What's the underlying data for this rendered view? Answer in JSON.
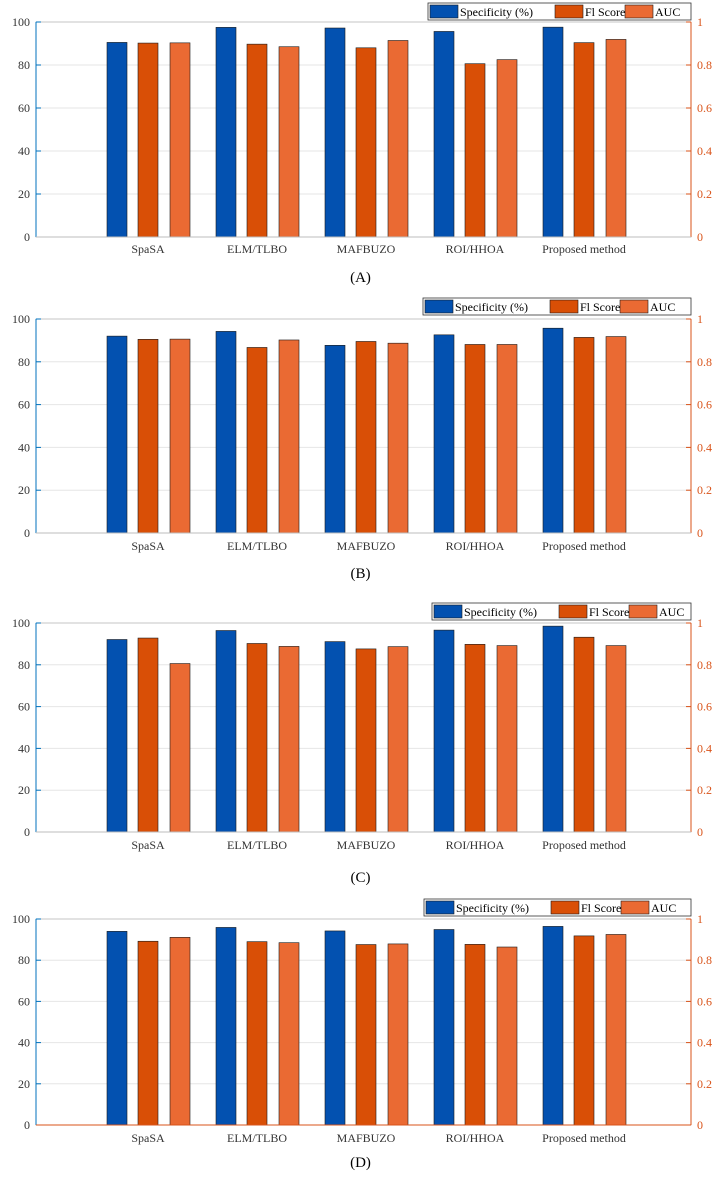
{
  "colors": {
    "specificity": "#0351b0",
    "f1": "#d94f06",
    "auc": "#ea6a33",
    "left_axis": "#0072bd",
    "right_axis": "#d95319"
  },
  "chart_data": [
    {
      "type": "bar",
      "caption": "(A)",
      "categories": [
        "SpaSA",
        "ELM/TLBO",
        "MAFBUZO",
        "ROI/HHOA",
        "Proposed method"
      ],
      "series": [
        {
          "name": "Specificity (%)",
          "axis": "left",
          "values": [
            90.5,
            97.5,
            97.2,
            95.6,
            97.6
          ]
        },
        {
          "name": "Fl Score",
          "axis": "right",
          "values": [
            0.902,
            0.897,
            0.88,
            0.806,
            0.904
          ]
        },
        {
          "name": "AUC",
          "axis": "right",
          "values": [
            0.903,
            0.885,
            0.914,
            0.825,
            0.919
          ]
        }
      ],
      "ylim_left": [
        0,
        100
      ],
      "yticks_left": [
        0,
        20,
        40,
        60,
        80,
        100
      ],
      "ylim_right": [
        0,
        1
      ],
      "yticks_right": [
        "0",
        "0.2",
        "0.4",
        "0.6",
        "0.8",
        "1"
      ],
      "legend": "top-right",
      "grid": true
    },
    {
      "type": "bar",
      "caption": "(B)",
      "categories": [
        "SpaSA",
        "ELM/TLBO",
        "MAFBUZO",
        "ROI/HHOA",
        "Proposed method"
      ],
      "series": [
        {
          "name": "Specificity (%)",
          "axis": "left",
          "values": [
            92.0,
            94.2,
            87.7,
            92.6,
            95.7
          ]
        },
        {
          "name": "Fl Score",
          "axis": "right",
          "values": [
            0.905,
            0.867,
            0.895,
            0.881,
            0.914
          ]
        },
        {
          "name": "AUC",
          "axis": "right",
          "values": [
            0.906,
            0.902,
            0.887,
            0.881,
            0.918
          ]
        }
      ],
      "ylim_left": [
        0,
        100
      ],
      "yticks_left": [
        0,
        20,
        40,
        60,
        80,
        100
      ],
      "ylim_right": [
        0,
        1
      ],
      "yticks_right": [
        "0",
        "0.2",
        "0.4",
        "0.6",
        "0.8",
        "1"
      ],
      "legend": "top-right",
      "grid": true
    },
    {
      "type": "bar",
      "caption": "(C)",
      "categories": [
        "SpaSA",
        "ELM/TLBO",
        "MAFBUZO",
        "ROI/HHOA",
        "Proposed method"
      ],
      "series": [
        {
          "name": "Specificity (%)",
          "axis": "left",
          "values": [
            92.1,
            96.4,
            91.1,
            96.6,
            98.5
          ]
        },
        {
          "name": "Fl Score",
          "axis": "right",
          "values": [
            0.928,
            0.902,
            0.876,
            0.898,
            0.932
          ]
        },
        {
          "name": "AUC",
          "axis": "right",
          "values": [
            0.806,
            0.888,
            0.887,
            0.892,
            0.892
          ]
        }
      ],
      "ylim_left": [
        0,
        100
      ],
      "yticks_left": [
        0,
        20,
        40,
        60,
        80,
        100
      ],
      "ylim_right": [
        0,
        1
      ],
      "yticks_right": [
        "0",
        "0.2",
        "0.4",
        "0.6",
        "0.8",
        "1"
      ],
      "legend": "top-right",
      "grid": true
    },
    {
      "type": "bar",
      "caption": "(D)",
      "categories": [
        "SpaSA",
        "ELM/TLBO",
        "MAFBUZO",
        "ROI/HHOA",
        "Proposed method"
      ],
      "series": [
        {
          "name": "Specificity (%)",
          "axis": "left",
          "values": [
            94.0,
            95.9,
            94.2,
            94.9,
            96.4
          ]
        },
        {
          "name": "Fl Score",
          "axis": "right",
          "values": [
            0.892,
            0.89,
            0.876,
            0.877,
            0.918
          ]
        },
        {
          "name": "AUC",
          "axis": "right",
          "values": [
            0.911,
            0.885,
            0.879,
            0.864,
            0.925
          ]
        }
      ],
      "ylim_left": [
        0,
        100
      ],
      "yticks_left": [
        0,
        20,
        40,
        60,
        80,
        100
      ],
      "ylim_right": [
        0,
        1
      ],
      "yticks_right": [
        "0",
        "0.2",
        "0.4",
        "0.6",
        "0.8",
        "1"
      ],
      "legend": "top-right",
      "grid": true
    }
  ]
}
